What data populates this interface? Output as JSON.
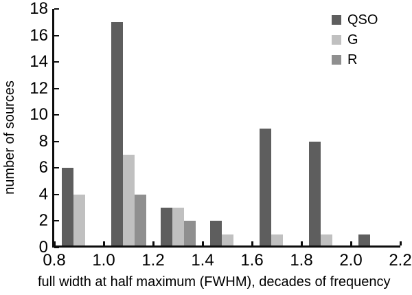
{
  "chart_data": {
    "type": "bar",
    "title": "",
    "xlabel": "full width at half maximum (FWHM), decades of frequency",
    "ylabel": "number of sources",
    "categories": [
      0.9,
      1.1,
      1.3,
      1.5,
      1.7,
      1.9,
      2.1
    ],
    "series": [
      {
        "name": "QSO",
        "color": "#5e5e5e",
        "values": [
          6,
          17,
          3,
          2,
          9,
          8,
          1
        ]
      },
      {
        "name": "G",
        "color": "#c0c0c0",
        "values": [
          4,
          7,
          3,
          1,
          1,
          1,
          0
        ]
      },
      {
        "name": "R",
        "color": "#8f8f8f",
        "values": [
          0,
          4,
          2,
          0,
          0,
          0,
          0
        ]
      }
    ],
    "xlim": [
      0.8,
      2.2
    ],
    "ylim": [
      0,
      18
    ],
    "x_ticks": [
      "0.8",
      "1.0",
      "1.2",
      "1.4",
      "1.6",
      "1.8",
      "2.0",
      "2.2"
    ],
    "y_ticks": [
      "0",
      "2",
      "4",
      "6",
      "8",
      "10",
      "12",
      "14",
      "16",
      "18"
    ],
    "legend_position": "top-right",
    "legend_entries": [
      "QSO",
      "G",
      "R"
    ],
    "grid": false,
    "axis_color": "#0d0d0d",
    "background_color": "#ffffff"
  }
}
